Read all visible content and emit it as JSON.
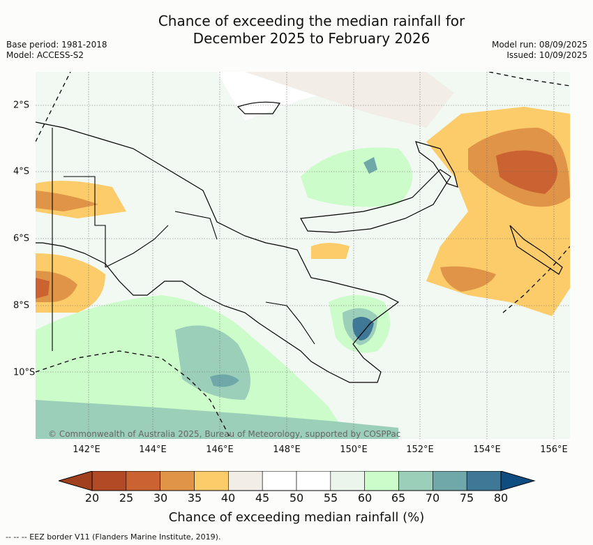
{
  "title": {
    "line1": "Chance of exceeding the median rainfall for",
    "line2": "December 2025 to February 2026"
  },
  "meta_left": {
    "base_period": "Base period: 1981-2018",
    "model": "Model: ACCESS-S2"
  },
  "meta_right": {
    "model_run": "Model run: 08/09/2025",
    "issued": "Issued: 10/09/2025"
  },
  "map": {
    "credit": "© Commonwealth of Australia 2025, Bureau of Meteorology, supported by COSPPac",
    "longitude_labels": [
      "142°E",
      "144°E",
      "146°E",
      "148°E",
      "150°E",
      "152°E",
      "154°E",
      "156°E"
    ],
    "latitude_labels": [
      "2°S",
      "4°S",
      "6°S",
      "8°S",
      "10°S"
    ],
    "region": "Papua New Guinea"
  },
  "colorbar": {
    "title": "Chance of exceeding median rainfall (%)",
    "levels": [
      "20",
      "25",
      "30",
      "35",
      "40",
      "45",
      "50",
      "55",
      "60",
      "65",
      "70",
      "75",
      "80"
    ],
    "colors": [
      "#a0401f",
      "#b24a25",
      "#cb6231",
      "#e09448",
      "#fccc6a",
      "#f2ede7",
      "#ffffff",
      "#ffffff",
      "#ecf5ec",
      "#ccfcca",
      "#9ccfb9",
      "#70a8aa",
      "#3e7896",
      "#0f4c80"
    ]
  },
  "footer": {
    "legend": "-- -- -- EEZ border V11 (Flanders Marine Institute, 2019)."
  }
}
